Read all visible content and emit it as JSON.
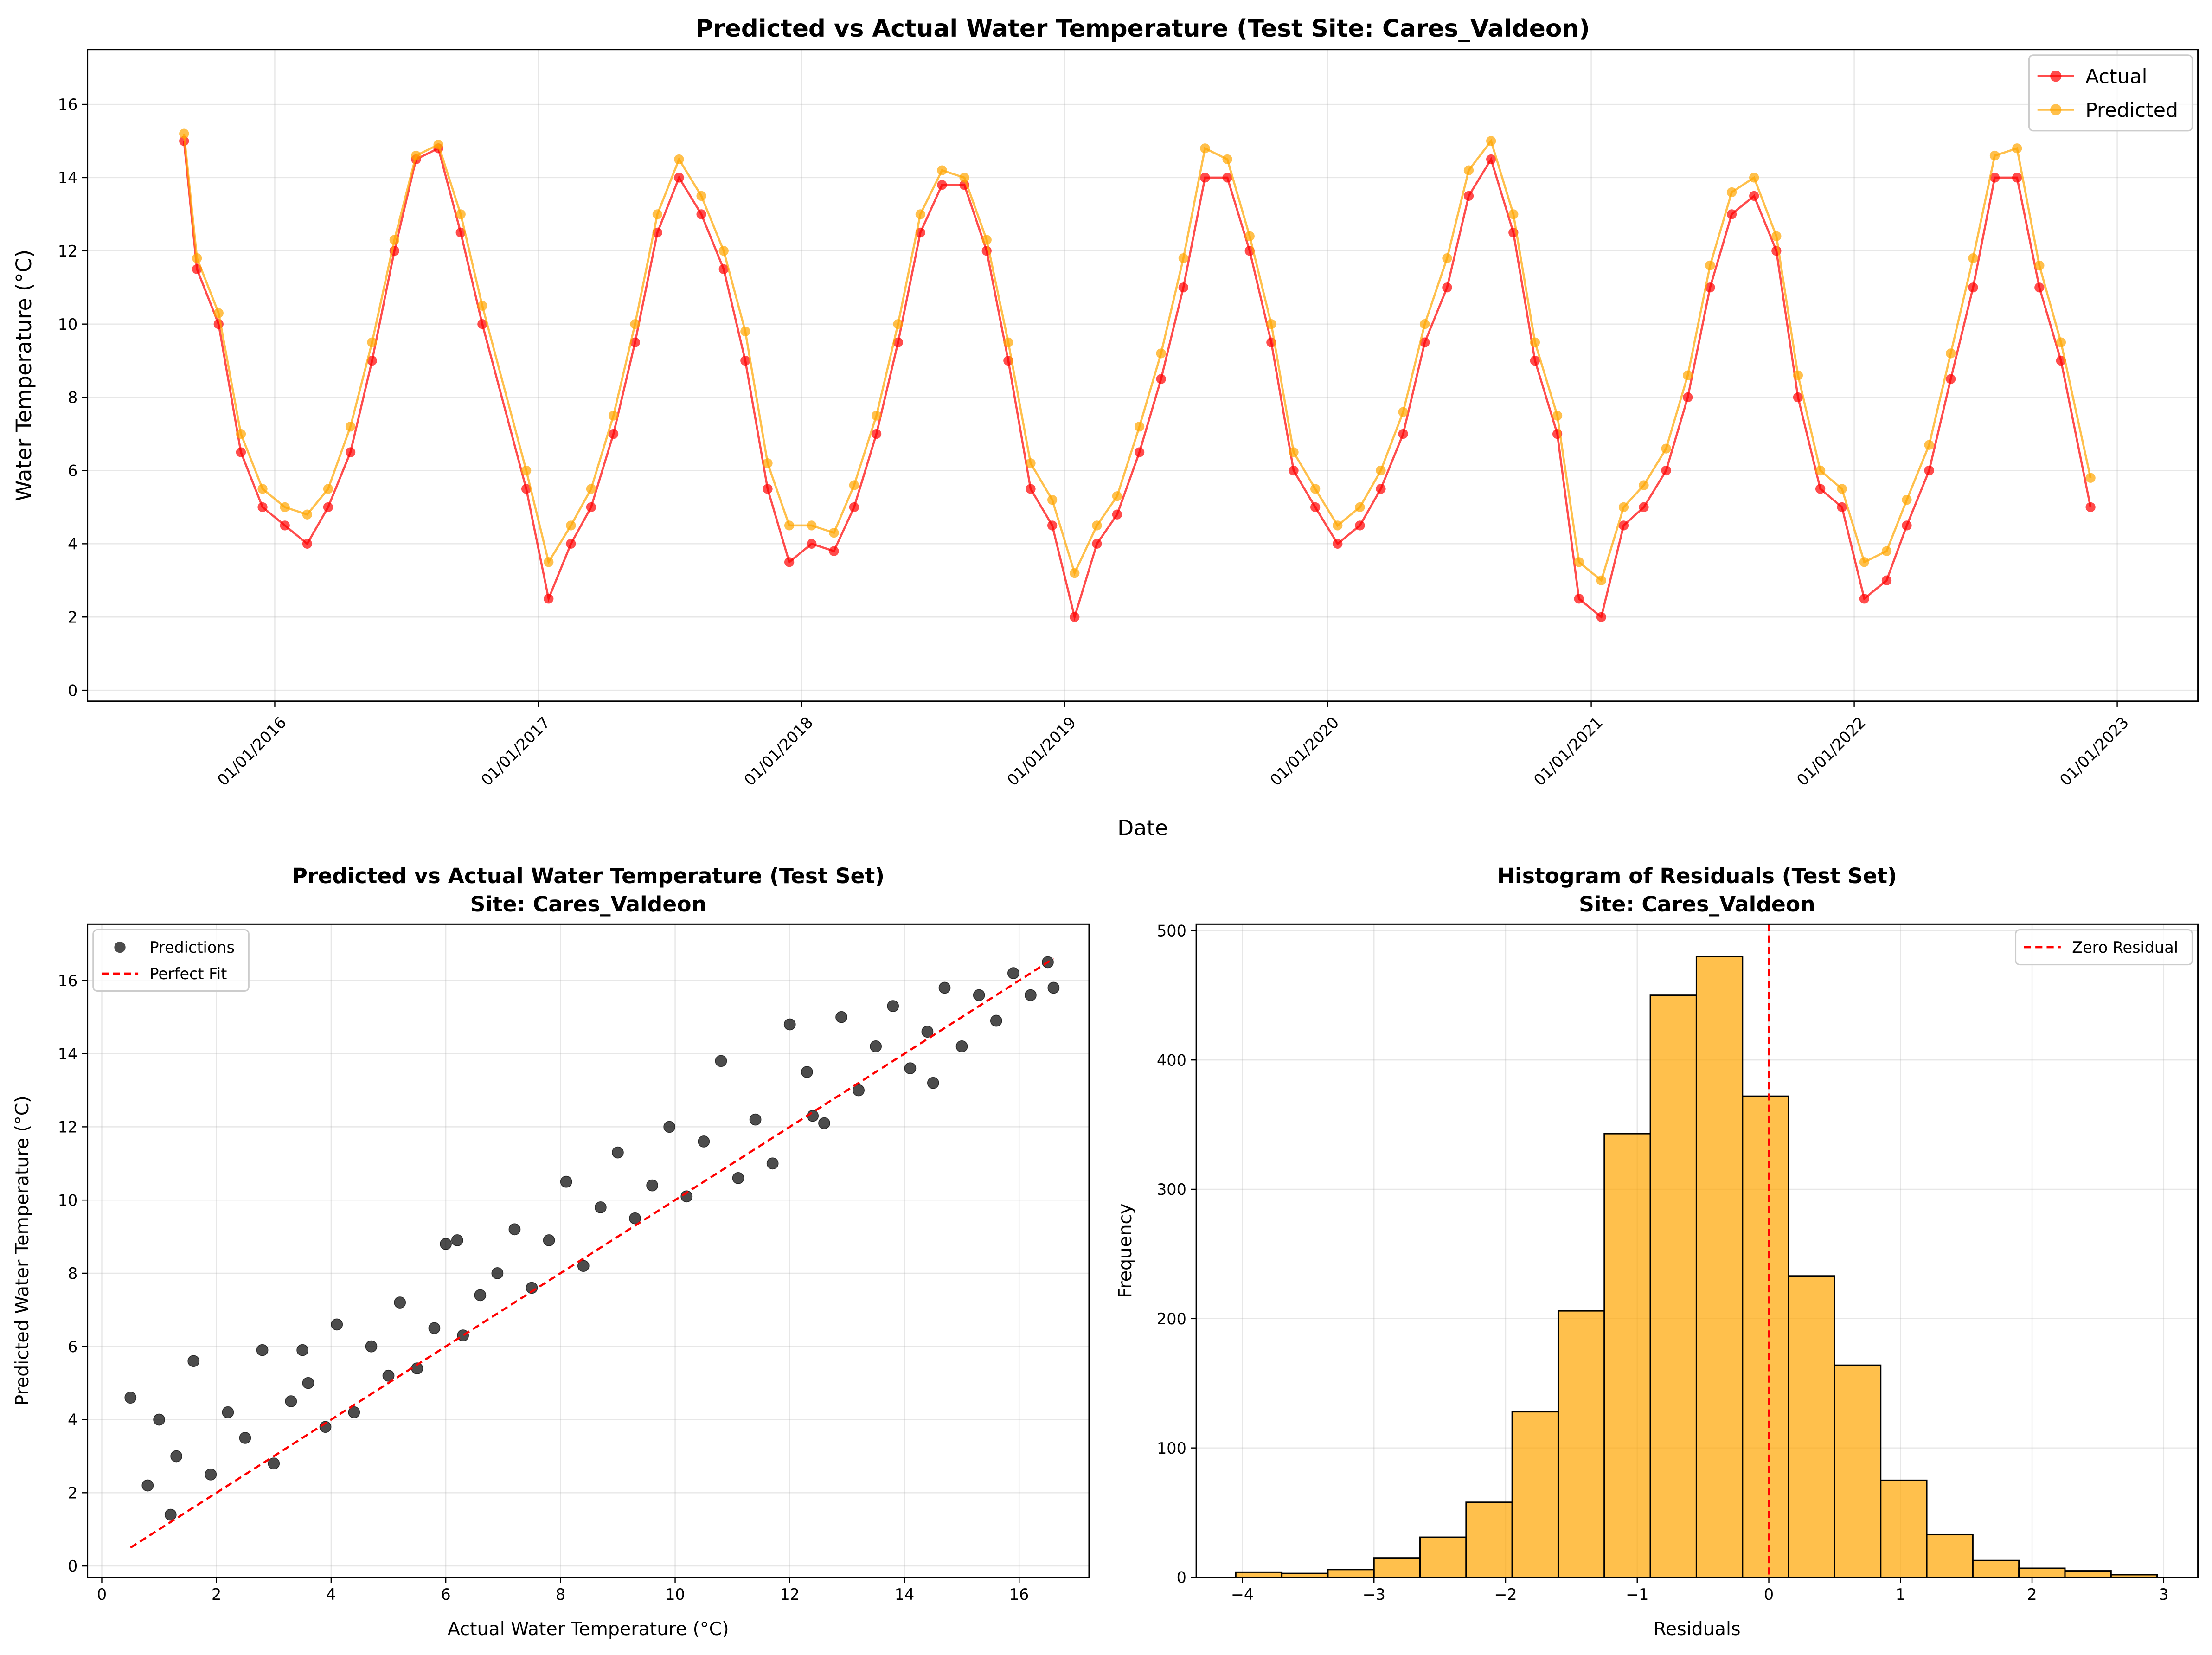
{
  "chart_data": [
    {
      "type": "line",
      "title": "Predicted vs Actual Water Temperature (Test Site: Cares_Valdeon)",
      "xlabel": "Date",
      "ylabel": "Water Temperature (°C)",
      "x": [
        "2015-08-28",
        "2015-09-15",
        "2015-10-15",
        "2015-11-15",
        "2015-12-15",
        "2016-01-15",
        "2016-02-15",
        "2016-03-15",
        "2016-04-15",
        "2016-05-15",
        "2016-06-15",
        "2016-07-15",
        "2016-08-15",
        "2016-09-15",
        "2016-10-15",
        "2016-12-15",
        "2017-01-15",
        "2017-02-15",
        "2017-03-15",
        "2017-04-15",
        "2017-05-15",
        "2017-06-15",
        "2017-07-15",
        "2017-08-15",
        "2017-09-15",
        "2017-10-15",
        "2017-11-15",
        "2017-12-15",
        "2018-01-15",
        "2018-02-15",
        "2018-03-15",
        "2018-04-15",
        "2018-05-15",
        "2018-06-15",
        "2018-07-15",
        "2018-08-15",
        "2018-09-15",
        "2018-10-15",
        "2018-11-15",
        "2018-12-15",
        "2019-01-15",
        "2019-02-15",
        "2019-03-15",
        "2019-04-15",
        "2019-05-15",
        "2019-06-15",
        "2019-07-15",
        "2019-08-15",
        "2019-09-15",
        "2019-10-15",
        "2019-11-15",
        "2019-12-15",
        "2020-01-15",
        "2020-02-15",
        "2020-03-15",
        "2020-04-15",
        "2020-05-15",
        "2020-06-15",
        "2020-07-15",
        "2020-08-15",
        "2020-09-15",
        "2020-10-15",
        "2020-11-15",
        "2020-12-15",
        "2021-01-15",
        "2021-02-15",
        "2021-03-15",
        "2021-04-15",
        "2021-05-15",
        "2021-06-15",
        "2021-07-15",
        "2021-08-15",
        "2021-09-15",
        "2021-10-15",
        "2021-11-15",
        "2021-12-15",
        "2022-01-15",
        "2022-02-15",
        "2022-03-15",
        "2022-04-15",
        "2022-05-15",
        "2022-06-15",
        "2022-07-15",
        "2022-08-15",
        "2022-09-15",
        "2022-10-15",
        "2022-11-25"
      ],
      "series": [
        {
          "name": "Actual",
          "color": "#ff0000",
          "values": [
            15.0,
            11.5,
            10.0,
            6.5,
            5.0,
            4.5,
            4.0,
            5.0,
            6.5,
            9.0,
            12.0,
            14.5,
            14.8,
            12.5,
            10.0,
            5.5,
            2.5,
            4.0,
            5.0,
            7.0,
            9.5,
            12.5,
            14.0,
            13.0,
            11.5,
            9.0,
            5.5,
            3.5,
            4.0,
            3.8,
            5.0,
            7.0,
            9.5,
            12.5,
            13.8,
            13.8,
            12.0,
            9.0,
            5.5,
            4.5,
            2.0,
            4.0,
            4.8,
            6.5,
            8.5,
            11.0,
            14.0,
            14.0,
            12.0,
            9.5,
            6.0,
            5.0,
            4.0,
            4.5,
            5.5,
            7.0,
            9.5,
            11.0,
            13.5,
            14.5,
            12.5,
            9.0,
            7.0,
            2.5,
            2.0,
            4.5,
            5.0,
            6.0,
            8.0,
            11.0,
            13.0,
            13.5,
            12.0,
            8.0,
            5.5,
            5.0,
            2.5,
            3.0,
            4.5,
            6.0,
            8.5,
            11.0,
            14.0,
            14.0,
            11.0,
            9.0,
            5.0
          ]
        },
        {
          "name": "Predicted",
          "color": "#ffa500",
          "values": [
            15.2,
            11.8,
            10.3,
            7.0,
            5.5,
            5.0,
            4.8,
            5.5,
            7.2,
            9.5,
            12.3,
            14.6,
            14.9,
            13.0,
            10.5,
            6.0,
            3.5,
            4.5,
            5.5,
            7.5,
            10.0,
            13.0,
            14.5,
            13.5,
            12.0,
            9.8,
            6.2,
            4.5,
            4.5,
            4.3,
            5.6,
            7.5,
            10.0,
            13.0,
            14.2,
            14.0,
            12.3,
            9.5,
            6.2,
            5.2,
            3.2,
            4.5,
            5.3,
            7.2,
            9.2,
            11.8,
            14.8,
            14.5,
            12.4,
            10.0,
            6.5,
            5.5,
            4.5,
            5.0,
            6.0,
            7.6,
            10.0,
            11.8,
            14.2,
            15.0,
            13.0,
            9.5,
            7.5,
            3.5,
            3.0,
            5.0,
            5.6,
            6.6,
            8.6,
            11.6,
            13.6,
            14.0,
            12.4,
            8.6,
            6.0,
            5.5,
            3.5,
            3.8,
            5.2,
            6.7,
            9.2,
            11.8,
            14.6,
            14.8,
            11.6,
            9.5,
            5.8
          ]
        }
      ],
      "xlim": [
        "2015-04-16",
        "2023-04-23"
      ],
      "xticks": [
        {
          "value": "2016-01-01",
          "label": "01/01/2016"
        },
        {
          "value": "2017-01-01",
          "label": "01/01/2017"
        },
        {
          "value": "2018-01-01",
          "label": "01/01/2018"
        },
        {
          "value": "2019-01-01",
          "label": "01/01/2019"
        },
        {
          "value": "2020-01-01",
          "label": "01/01/2020"
        },
        {
          "value": "2021-01-01",
          "label": "01/01/2021"
        },
        {
          "value": "2022-01-01",
          "label": "01/01/2022"
        },
        {
          "value": "2023-01-01",
          "label": "01/01/2023"
        }
      ],
      "ylim": [
        -0.3,
        17.5
      ],
      "yticks": [
        0,
        2,
        4,
        6,
        8,
        10,
        12,
        14,
        16
      ],
      "grid": true,
      "legend": "upper right"
    },
    {
      "type": "scatter",
      "title": "Predicted vs Actual Water Temperature (Test Set)",
      "subtitle": "Site: Cares_Valdeon",
      "xlabel": "Actual Water Temperature (°C)",
      "ylabel": "Predicted Water Temperature (°C)",
      "series": [
        {
          "name": "Predictions",
          "color": "#000000",
          "x": [
            0.5,
            0.8,
            1.0,
            1.3,
            1.6,
            1.9,
            2.2,
            2.5,
            2.8,
            3.0,
            3.3,
            3.6,
            3.9,
            4.1,
            4.4,
            4.7,
            5.0,
            5.2,
            5.5,
            5.8,
            6.0,
            6.3,
            6.6,
            6.9,
            7.2,
            7.5,
            7.8,
            8.1,
            8.4,
            8.7,
            9.0,
            9.3,
            9.6,
            9.9,
            10.2,
            10.5,
            10.8,
            11.1,
            11.4,
            11.7,
            12.0,
            12.3,
            12.6,
            12.9,
            13.2,
            13.5,
            13.8,
            14.1,
            14.4,
            14.7,
            15.0,
            15.3,
            15.6,
            15.9,
            16.2,
            16.5,
            1.2,
            3.5,
            6.2,
            12.4,
            14.5,
            16.6
          ],
          "values": [
            4.6,
            2.2,
            4.0,
            3.0,
            5.6,
            2.5,
            4.2,
            3.5,
            5.9,
            2.8,
            4.5,
            5.0,
            3.8,
            6.6,
            4.2,
            6.0,
            5.2,
            7.2,
            5.4,
            6.5,
            8.8,
            6.3,
            7.4,
            8.0,
            9.2,
            7.6,
            8.9,
            10.5,
            8.2,
            9.8,
            11.3,
            9.5,
            10.4,
            12.0,
            10.1,
            11.6,
            13.8,
            10.6,
            12.2,
            11.0,
            14.8,
            13.5,
            12.1,
            15.0,
            13.0,
            14.2,
            15.3,
            13.6,
            14.6,
            15.8,
            14.2,
            15.6,
            14.9,
            16.2,
            15.6,
            16.5,
            1.4,
            5.9,
            8.9,
            12.3,
            13.2,
            15.8
          ]
        }
      ],
      "fit_line": {
        "name": "Perfect Fit",
        "color": "#ff0000",
        "x": [
          0.5,
          16.6
        ],
        "y": [
          0.5,
          16.6
        ]
      },
      "xlim": [
        -0.25,
        17.22
      ],
      "xticks": [
        0,
        2,
        4,
        6,
        8,
        10,
        12,
        14,
        16
      ],
      "ylim": [
        -0.31,
        17.54
      ],
      "yticks": [
        0,
        2,
        4,
        6,
        8,
        10,
        12,
        14,
        16
      ],
      "grid": true,
      "legend": "upper left"
    },
    {
      "type": "histogram",
      "title": "Histogram of Residuals (Test Set)",
      "subtitle": "Site: Cares_Valdeon",
      "xlabel": "Residuals",
      "ylabel": "Frequency",
      "color": "#ffa500",
      "bins": [
        -4.05,
        -3.7,
        -3.35,
        -3.0,
        -2.65,
        -2.3,
        -1.95,
        -1.6,
        -1.25,
        -0.9,
        -0.55,
        -0.2,
        0.15,
        0.5,
        0.85,
        1.2,
        1.55,
        1.9,
        2.25,
        2.6,
        2.95
      ],
      "counts": [
        4,
        3,
        6,
        15,
        31,
        58,
        128,
        206,
        343,
        450,
        480,
        372,
        233,
        164,
        75,
        33,
        13,
        7,
        5,
        2
      ],
      "vline": {
        "name": "Zero Residual",
        "value": 0,
        "color": "#ff0000"
      },
      "xlim": [
        -4.35,
        3.26
      ],
      "xticks": [
        {
          "value": -4,
          "label": "−4"
        },
        {
          "value": -3,
          "label": "−3"
        },
        {
          "value": -2,
          "label": "−2"
        },
        {
          "value": -1,
          "label": "−1"
        },
        0,
        1,
        2,
        3
      ],
      "ylim": [
        0,
        505
      ],
      "yticks": [
        0,
        100,
        200,
        300,
        400,
        500
      ],
      "grid": true,
      "legend": "upper right"
    }
  ]
}
